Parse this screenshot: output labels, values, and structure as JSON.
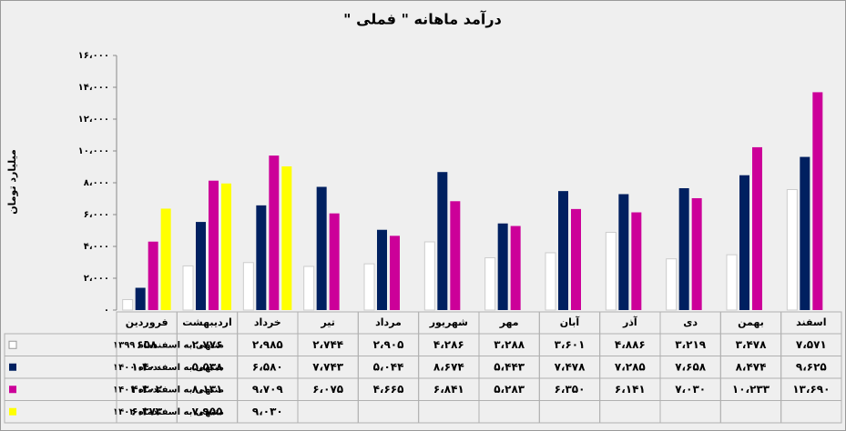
{
  "chart_data": {
    "type": "bar",
    "title": "درآمد ماهانه \" فملی \"",
    "y_label": "میلیارد تومان",
    "categories": [
      "فروردین",
      "اردیبهشت",
      "خرداد",
      "تیر",
      "مرداد",
      "شهریور",
      "مهر",
      "آبان",
      "آذر",
      "دی",
      "بهمن",
      "اسفند"
    ],
    "series": [
      {
        "name": "منتهی به اسفندماه ۱۳۹۹",
        "color": "#ffffff",
        "values": [
          658,
          2776,
          2985,
          2744,
          2905,
          4286,
          3288,
          3601,
          4886,
          3219,
          3478,
          7571
        ],
        "value_labels": [
          "۶۵۸",
          "۲،۷۷۶",
          "۲،۹۸۵",
          "۲،۷۴۴",
          "۲،۹۰۵",
          "۴،۲۸۶",
          "۳،۲۸۸",
          "۳،۶۰۱",
          "۴،۸۸۶",
          "۳،۲۱۹",
          "۳،۴۷۸",
          "۷،۵۷۱"
        ]
      },
      {
        "name": "منتهی به اسفندماه ۱۴۰۰",
        "color": "#002060",
        "values": [
          1400,
          5538,
          6580,
          7743,
          5044,
          8674,
          5443,
          7478,
          7285,
          7658,
          8474,
          9625
        ],
        "value_labels": [
          "۱،۴۰۰",
          "۵،۵۳۸",
          "۶،۵۸۰",
          "۷،۷۴۳",
          "۵،۰۴۴",
          "۸،۶۷۴",
          "۵،۴۴۳",
          "۷،۴۷۸",
          "۷،۲۸۵",
          "۷،۶۵۸",
          "۸،۴۷۴",
          "۹،۶۲۵"
        ]
      },
      {
        "name": "منتهی به اسفندماه ۱۴۰۱",
        "color": "#cc0099",
        "values": [
          4302,
          8131,
          9709,
          6075,
          4665,
          6841,
          5283,
          6350,
          6141,
          7030,
          10233,
          13690
        ],
        "value_labels": [
          "۴،۳۰۲",
          "۸،۱۳۱",
          "۹،۷۰۹",
          "۶،۰۷۵",
          "۴،۶۶۵",
          "۶،۸۴۱",
          "۵،۲۸۳",
          "۶،۳۵۰",
          "۶،۱۴۱",
          "۷،۰۳۰",
          "۱۰،۲۳۳",
          "۱۳،۶۹۰"
        ]
      },
      {
        "name": "منتهی به اسفندماه ۱۴۰۲",
        "color": "#ffff00",
        "values": [
          6373,
          7955,
          9030,
          null,
          null,
          null,
          null,
          null,
          null,
          null,
          null,
          null
        ],
        "value_labels": [
          "۶،۳۷۳",
          "۷،۹۵۵",
          "۹،۰۳۰",
          null,
          null,
          null,
          null,
          null,
          null,
          null,
          null,
          null
        ]
      }
    ],
    "ylim": [
      0,
      16000
    ],
    "yticks": [
      {
        "value": 0,
        "label": "۰"
      },
      {
        "value": 2000,
        "label": "۲،۰۰۰"
      },
      {
        "value": 4000,
        "label": "۴،۰۰۰"
      },
      {
        "value": 6000,
        "label": "۶،۰۰۰"
      },
      {
        "value": 8000,
        "label": "۸،۰۰۰"
      },
      {
        "value": 10000,
        "label": "۱۰،۰۰۰"
      },
      {
        "value": 12000,
        "label": "۱۲،۰۰۰"
      },
      {
        "value": 14000,
        "label": "۱۴،۰۰۰"
      },
      {
        "value": 16000,
        "label": "۱۶،۰۰۰"
      }
    ],
    "grid": false
  }
}
